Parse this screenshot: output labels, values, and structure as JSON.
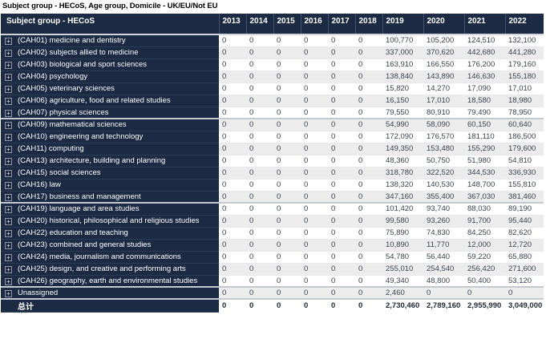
{
  "title": "Subject group - HECoS, Age group, Domicile - UK/EU/Not EU",
  "colors": {
    "navy": "#1c2a43",
    "alt_row": "#ececec",
    "value_text": "#3a4250",
    "header_text": "#ffffff",
    "grid_line": "#c4c8cf"
  },
  "matrix": {
    "row_header": "Subject group - HECoS",
    "columns": [
      "2013",
      "2014",
      "2015",
      "2016",
      "2017",
      "2018",
      "2019",
      "2020",
      "2021",
      "2022"
    ],
    "expand_glyph": "+",
    "rows": [
      {
        "label": "(CAH01) medicine and dentistry",
        "values": [
          "0",
          "0",
          "0",
          "0",
          "0",
          "0",
          "100,770",
          "105,200",
          "124,510",
          "132,100"
        ]
      },
      {
        "label": "(CAH02) subjects allied to medicine",
        "values": [
          "0",
          "0",
          "0",
          "0",
          "0",
          "0",
          "337,000",
          "370,620",
          "442,680",
          "441,280"
        ]
      },
      {
        "label": "(CAH03) biological and sport sciences",
        "values": [
          "0",
          "0",
          "0",
          "0",
          "0",
          "0",
          "163,910",
          "166,550",
          "176,200",
          "179,160"
        ]
      },
      {
        "label": "(CAH04) psychology",
        "values": [
          "0",
          "0",
          "0",
          "0",
          "0",
          "0",
          "138,840",
          "143,890",
          "146,630",
          "155,180"
        ]
      },
      {
        "label": "(CAH05) veterinary sciences",
        "values": [
          "0",
          "0",
          "0",
          "0",
          "0",
          "0",
          "15,820",
          "14,270",
          "17,090",
          "17,010"
        ]
      },
      {
        "label": "(CAH06) agriculture, food and related studies",
        "values": [
          "0",
          "0",
          "0",
          "0",
          "0",
          "0",
          "16,150",
          "17,010",
          "18,580",
          "18,980"
        ]
      },
      {
        "label": "(CAH07) physical sciences",
        "values": [
          "0",
          "0",
          "0",
          "0",
          "0",
          "0",
          "79,550",
          "80,910",
          "79,490",
          "78,950"
        ]
      },
      {
        "label": "(CAH09) mathematical sciences",
        "values": [
          "0",
          "0",
          "0",
          "0",
          "0",
          "0",
          "54,990",
          "58,090",
          "60,150",
          "60,640"
        ]
      },
      {
        "label": "(CAH10) engineering and technology",
        "values": [
          "0",
          "0",
          "0",
          "0",
          "0",
          "0",
          "172,090",
          "176,570",
          "181,110",
          "186,500"
        ]
      },
      {
        "label": "(CAH11) computing",
        "values": [
          "0",
          "0",
          "0",
          "0",
          "0",
          "0",
          "149,350",
          "153,480",
          "155,290",
          "179,600"
        ]
      },
      {
        "label": "(CAH13) architecture, building and planning",
        "values": [
          "0",
          "0",
          "0",
          "0",
          "0",
          "0",
          "48,360",
          "50,750",
          "51,980",
          "54,810"
        ]
      },
      {
        "label": "(CAH15) social sciences",
        "values": [
          "0",
          "0",
          "0",
          "0",
          "0",
          "0",
          "318,780",
          "322,520",
          "344,530",
          "336,930"
        ]
      },
      {
        "label": "(CAH16) law",
        "values": [
          "0",
          "0",
          "0",
          "0",
          "0",
          "0",
          "138,320",
          "140,530",
          "148,700",
          "155,810"
        ]
      },
      {
        "label": "(CAH17) business and management",
        "values": [
          "0",
          "0",
          "0",
          "0",
          "0",
          "0",
          "347,160",
          "355,400",
          "367,030",
          "381,460"
        ]
      },
      {
        "label": "(CAH19) language and area studies",
        "values": [
          "0",
          "0",
          "0",
          "0",
          "0",
          "0",
          "101,420",
          "93,740",
          "88,030",
          "89,190"
        ]
      },
      {
        "label": "(CAH20) historical, philosophical and religious studies",
        "values": [
          "0",
          "0",
          "0",
          "0",
          "0",
          "0",
          "99,580",
          "93,260",
          "91,700",
          "95,440"
        ]
      },
      {
        "label": "(CAH22) education and teaching",
        "values": [
          "0",
          "0",
          "0",
          "0",
          "0",
          "0",
          "75,890",
          "74,830",
          "84,250",
          "82,620"
        ]
      },
      {
        "label": "(CAH23) combined and general studies",
        "values": [
          "0",
          "0",
          "0",
          "0",
          "0",
          "0",
          "10,890",
          "11,770",
          "12,000",
          "12,720"
        ]
      },
      {
        "label": "(CAH24) media, journalism and communications",
        "values": [
          "0",
          "0",
          "0",
          "0",
          "0",
          "0",
          "54,780",
          "56,440",
          "59,220",
          "65,880"
        ]
      },
      {
        "label": "(CAH25) design, and creative and performing arts",
        "values": [
          "0",
          "0",
          "0",
          "0",
          "0",
          "0",
          "255,010",
          "254,540",
          "256,420",
          "271,600"
        ]
      },
      {
        "label": "(CAH26) geography, earth and environmental studies",
        "values": [
          "0",
          "0",
          "0",
          "0",
          "0",
          "0",
          "49,340",
          "48,800",
          "50,400",
          "53,120"
        ]
      },
      {
        "label": "Unassigned",
        "values": [
          "0",
          "0",
          "0",
          "0",
          "0",
          "0",
          "2,460",
          "0",
          "0",
          "0"
        ]
      }
    ],
    "total_row": {
      "label": "总计",
      "values": [
        "0",
        "0",
        "0",
        "0",
        "0",
        "0",
        "2,730,460",
        "2,789,160",
        "2,955,990",
        "3,049,000"
      ]
    }
  }
}
